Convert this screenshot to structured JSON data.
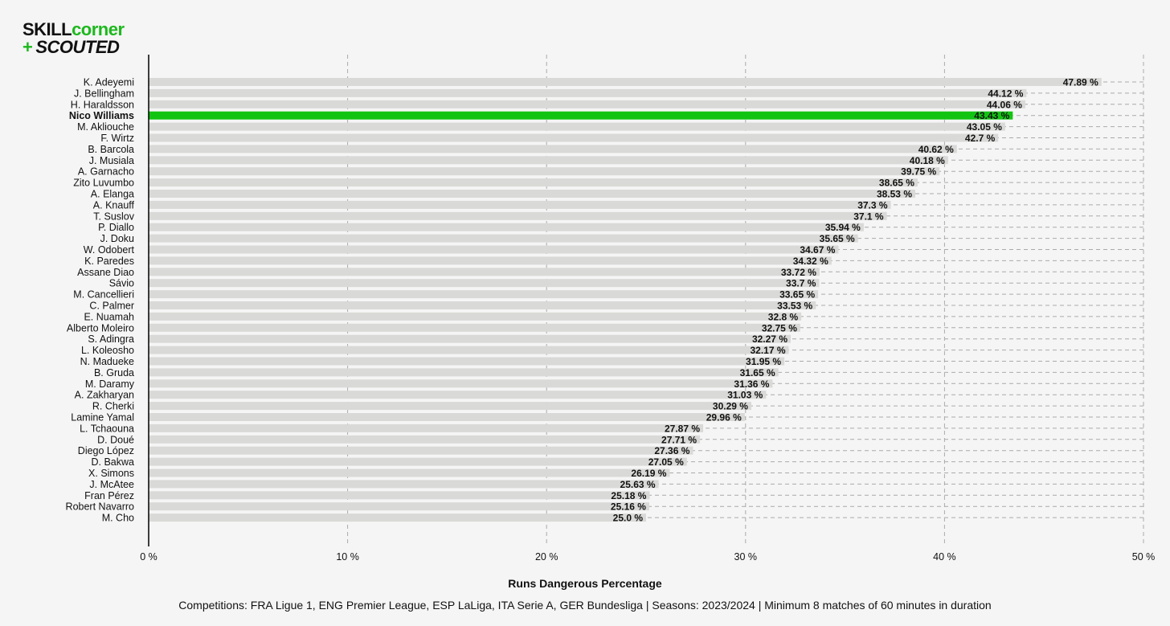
{
  "logo": {
    "line1_a": "SKILL",
    "line1_b": "corner",
    "line2_plus": "+",
    "line2_b": "SCOUTED"
  },
  "colors": {
    "background": "#f5f5f5",
    "bar": "#d9d9d7",
    "highlight": "#12c412",
    "grid": "#aaaaaa",
    "axis": "#000000"
  },
  "chart_data": {
    "type": "bar",
    "orientation": "horizontal",
    "xlabel": "Runs Dangerous Percentage",
    "caption": "Competitions: FRA Ligue 1, ENG Premier League, ESP LaLiga, ITA Serie A, GER Bundesliga | Seasons: 2023/2024 | Minimum 8 matches of 60 minutes in duration",
    "xlim": [
      0,
      50
    ],
    "xticks": [
      0,
      10,
      20,
      30,
      40,
      50
    ],
    "xtick_labels": [
      "0 %",
      "10 %",
      "20 %",
      "30 %",
      "40 %",
      "50 %"
    ],
    "value_suffix": " %",
    "grid": true,
    "highlight": "Nico Williams",
    "categories": [
      "K. Adeyemi",
      "J. Bellingham",
      "H. Haraldsson",
      "Nico Williams",
      "M. Akliouche",
      "F. Wirtz",
      "B. Barcola",
      "J. Musiala",
      "A. Garnacho",
      "Zito Luvumbo",
      "A. Elanga",
      "A. Knauff",
      "T. Suslov",
      "P. Diallo",
      "J. Doku",
      "W. Odobert",
      "K. Paredes",
      "Assane Diao",
      "Sávio",
      "M. Cancellieri",
      "C. Palmer",
      "E. Nuamah",
      "Alberto Moleiro",
      "S. Adingra",
      "L. Koleosho",
      "N. Madueke",
      "B. Gruda",
      "M. Daramy",
      "A. Zakharyan",
      "R. Cherki",
      "Lamine Yamal",
      "L. Tchaouna",
      "D. Doué",
      "Diego López",
      "D. Bakwa",
      "X. Simons",
      "J. McAtee",
      "Fran Pérez",
      "Robert Navarro",
      "M. Cho"
    ],
    "values": [
      47.89,
      44.12,
      44.06,
      43.43,
      43.05,
      42.7,
      40.62,
      40.18,
      39.75,
      38.65,
      38.53,
      37.3,
      37.1,
      35.94,
      35.65,
      34.67,
      34.32,
      33.72,
      33.7,
      33.65,
      33.53,
      32.8,
      32.75,
      32.27,
      32.17,
      31.95,
      31.65,
      31.36,
      31.03,
      30.29,
      29.96,
      27.87,
      27.71,
      27.36,
      27.05,
      26.19,
      25.63,
      25.18,
      25.16,
      25.0
    ],
    "value_labels": [
      "47.89 %",
      "44.12 %",
      "44.06 %",
      "43.43 %",
      "43.05 %",
      "42.7 %",
      "40.62 %",
      "40.18 %",
      "39.75 %",
      "38.65 %",
      "38.53 %",
      "37.3 %",
      "37.1 %",
      "35.94 %",
      "35.65 %",
      "34.67 %",
      "34.32 %",
      "33.72 %",
      "33.7 %",
      "33.65 %",
      "33.53 %",
      "32.8 %",
      "32.75 %",
      "32.27 %",
      "32.17 %",
      "31.95 %",
      "31.65 %",
      "31.36 %",
      "31.03 %",
      "30.29 %",
      "29.96 %",
      "27.87 %",
      "27.71 %",
      "27.36 %",
      "27.05 %",
      "26.19 %",
      "25.63 %",
      "25.18 %",
      "25.16 %",
      "25.0 %"
    ]
  }
}
